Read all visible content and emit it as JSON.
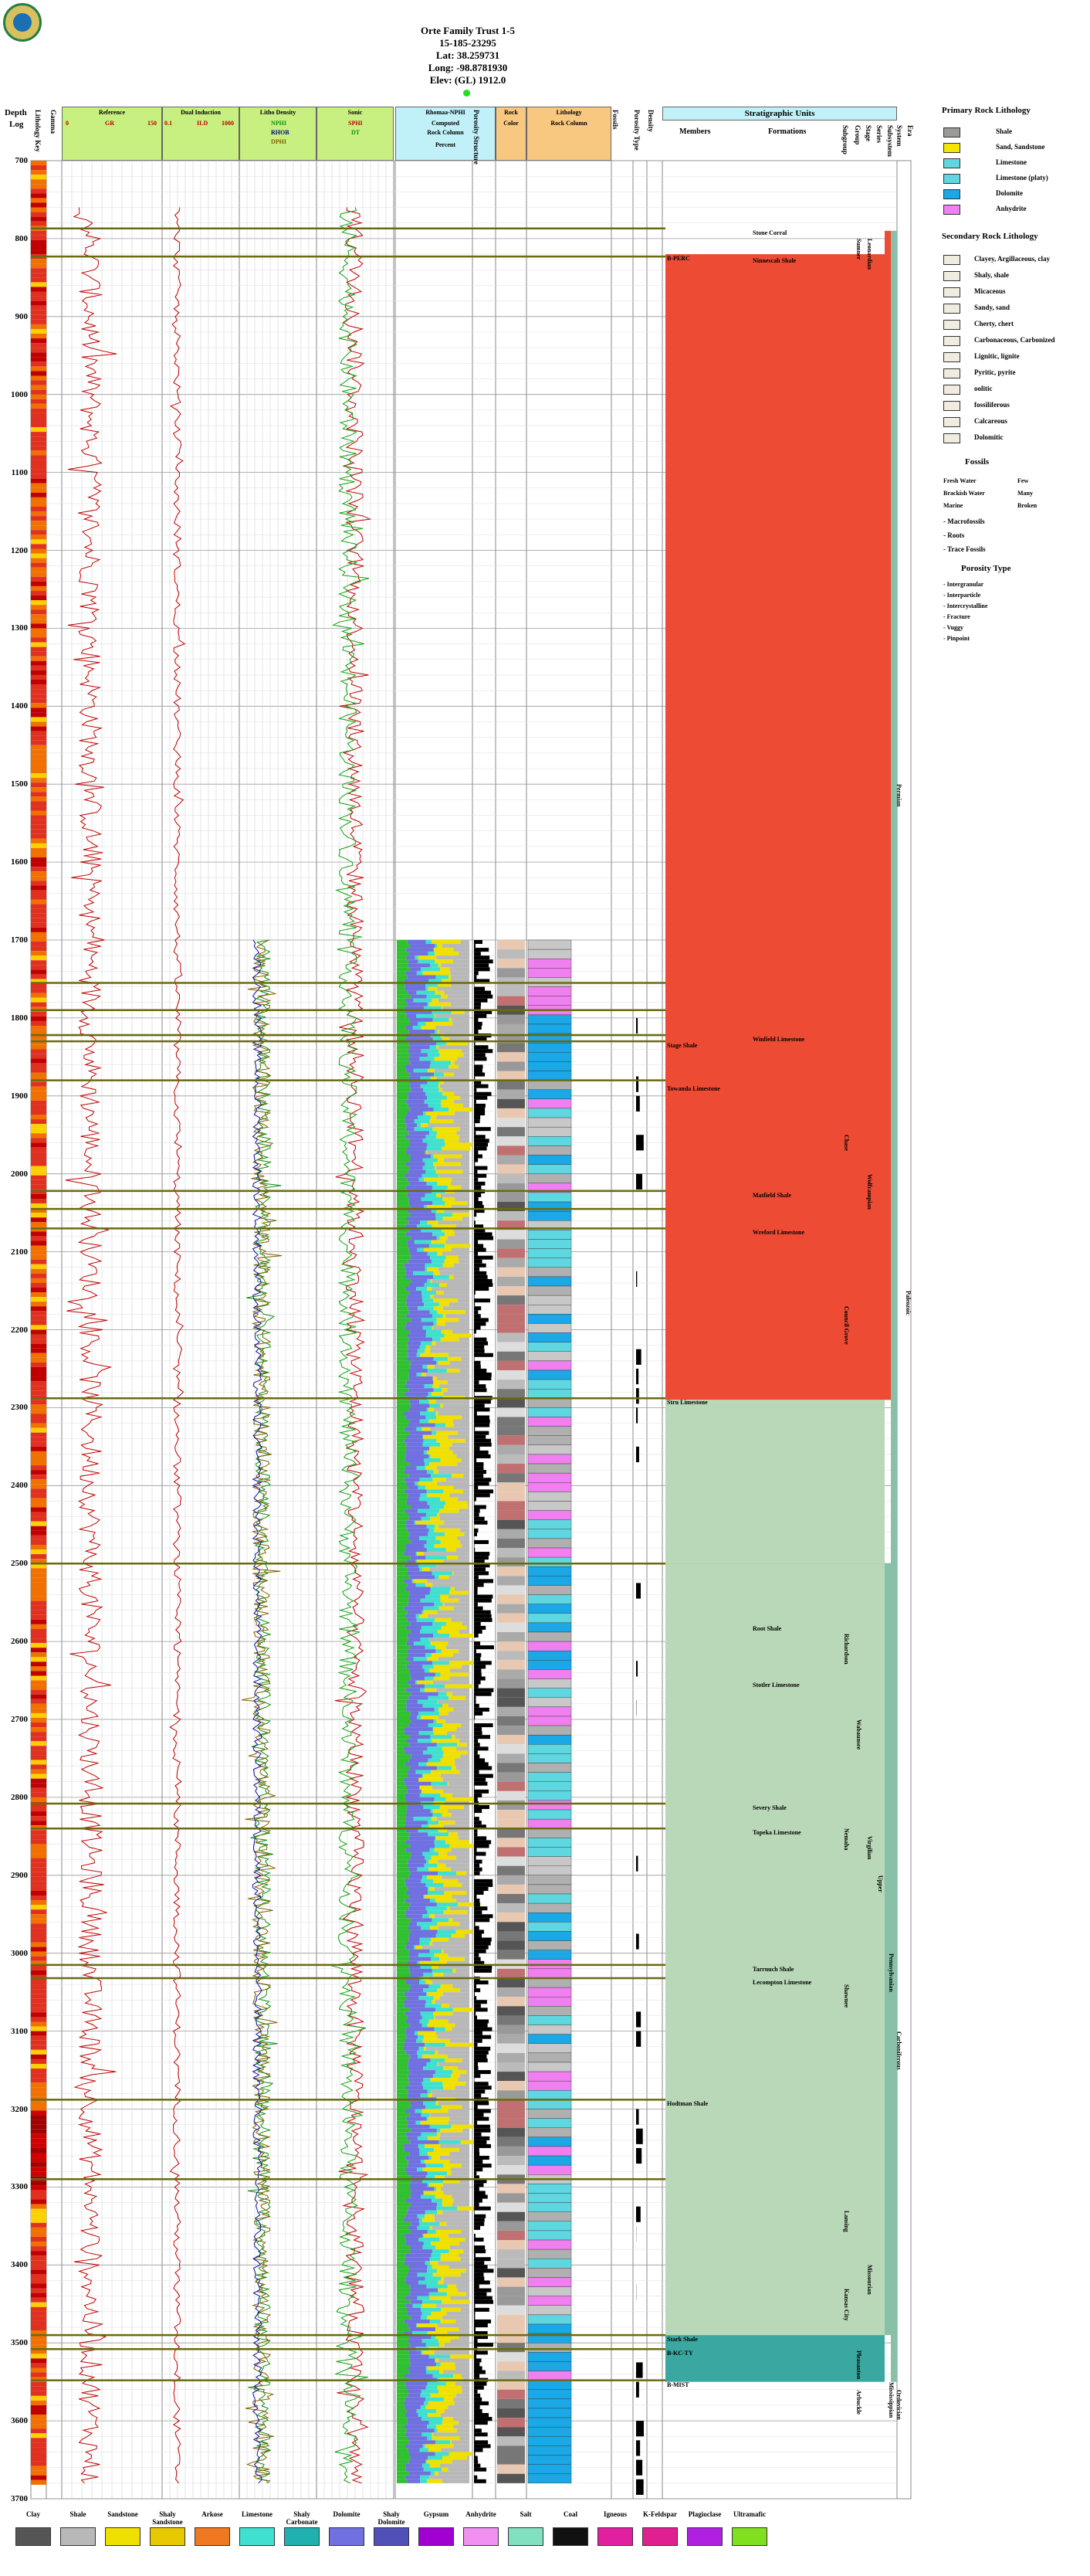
{
  "header": {
    "title": "Orte Family Trust 1-5",
    "api": "15-185-23295",
    "lat": "Lat: 38.259731",
    "long": "Long: -98.8781930",
    "elev": "Elev: (GL) 1912.0"
  },
  "columns": {
    "depth": "Depth",
    "depth_unit": "Log",
    "lith_key": "Lithology Key",
    "gamma": "Gamma",
    "reference": "Reference",
    "gr": "GR",
    "gr_range": [
      "0",
      "150"
    ],
    "dual_induction": "Dual Induction",
    "ild": "ILD",
    "ild_range": [
      "0.1",
      "1000"
    ],
    "litho_density": "Litho Density",
    "nphi": "NPHI",
    "rhob": "RHOB",
    "dphi": "DPHI",
    "sonic": "Sonic",
    "sphi": "SPHI",
    "dt": "DT",
    "rhomaa": "Rhomaa-NPHI",
    "computed": "Computed",
    "rock_column": "Rock Column",
    "percent": "Percent",
    "percent_ticks": [
      "0",
      "20",
      "50",
      "70",
      "90",
      "0",
      "50"
    ],
    "porosity": "Porosity Structure",
    "rock": "Rock",
    "color": "Color",
    "lithology": "Lithology",
    "lith_rock_column": "Rock Column",
    "fossils": "Fossils",
    "porosity_type": "Porosity Type",
    "density": "Density",
    "strat_units": "Stratigraphic Units",
    "members": "Members",
    "formations": "Formations",
    "subgroup": "Subgroup",
    "group": "Group",
    "stage": "Stage",
    "series": "Series",
    "subsystem": "Subsystem",
    "system": "System",
    "era": "Era"
  },
  "depth_labels": [
    "700",
    "800",
    "900",
    "1000",
    "1100",
    "1200",
    "1300",
    "1400",
    "1500",
    "1600",
    "1700",
    "1800",
    "1900",
    "2000",
    "2100",
    "2200",
    "2300",
    "2400",
    "2500",
    "2600",
    "2700",
    "2800",
    "2900",
    "3000",
    "3100",
    "3200",
    "3300",
    "3400",
    "3500",
    "3600",
    "3700"
  ],
  "members": [
    {
      "name": "B-PERC",
      "depth": 820
    },
    {
      "name": "Stage Shale",
      "depth": 1830
    },
    {
      "name": "Towanda Limestone",
      "depth": 1885
    },
    {
      "name": "Stru Limestone",
      "depth": 2288
    },
    {
      "name": "Hodtman Shale",
      "depth": 3188
    },
    {
      "name": "Stark Shale",
      "depth": 3490
    },
    {
      "name": "B-KC-TY",
      "depth": 3508
    },
    {
      "name": "B-MIST",
      "depth": 3548
    }
  ],
  "formations": [
    {
      "name": "Stone Corral",
      "depth": 787
    },
    {
      "name": "Ninnescah Shale",
      "depth": 823
    },
    {
      "name": "Winfield Limestone",
      "depth": 1822
    },
    {
      "name": "Matfield Shale",
      "depth": 2022
    },
    {
      "name": "Wreford Limestone",
      "depth": 2070
    },
    {
      "name": "Root Shale",
      "depth": 2578
    },
    {
      "name": "Stotler Limestone",
      "depth": 2650
    },
    {
      "name": "Severy Shale",
      "depth": 2808
    },
    {
      "name": "Topeka Limestone",
      "depth": 2840
    },
    {
      "name": "Tarrnuch Shale",
      "depth": 3015
    },
    {
      "name": "Lecompton Limestone",
      "depth": 3032
    }
  ],
  "strat_vertical": {
    "subgroup": [
      {
        "name": "Chase",
        "depth": 1950
      },
      {
        "name": "Council Grove",
        "depth": 2170
      },
      {
        "name": "Richardson",
        "depth": 2590
      },
      {
        "name": "Nemaha",
        "depth": 2840
      },
      {
        "name": "Shawnee",
        "depth": 3040
      },
      {
        "name": "Lansing",
        "depth": 3330
      },
      {
        "name": "Kansas City",
        "depth": 3430
      }
    ],
    "group": [
      {
        "name": "Sumner",
        "depth": 800
      },
      {
        "name": "Wabaunsee",
        "depth": 2700
      },
      {
        "name": "Pleasanton",
        "depth": 3510
      },
      {
        "name": "Arbuckle",
        "depth": 3560
      }
    ],
    "stage": [
      {
        "name": "Leonardian",
        "depth": 800
      },
      {
        "name": "Wolfcampian",
        "depth": 2000
      },
      {
        "name": "Virgilian",
        "depth": 2850
      },
      {
        "name": "Missourian",
        "depth": 3400
      }
    ],
    "series": [
      {
        "name": "Upper",
        "depth": 2900
      }
    ],
    "subsystem": [
      {
        "name": "Pennsylvanian",
        "depth": 3000
      },
      {
        "name": "Mississippian",
        "depth": 3550
      }
    ],
    "system": [
      {
        "name": "Permian",
        "depth": 1500
      },
      {
        "name": "Carboniferous",
        "depth": 3100
      },
      {
        "name": "Ordovician",
        "depth": 3560
      }
    ],
    "era": [
      {
        "name": "Paleozoic",
        "depth": 2150
      }
    ]
  },
  "legend": {
    "primary_title": "Primary Rock Lithology",
    "primary": [
      {
        "label": "Shale",
        "color": "#9a9a9a"
      },
      {
        "label": "Sand, Sandstone",
        "color": "#f5e500"
      },
      {
        "label": "Limestone",
        "color": "#5fd7e0"
      },
      {
        "label": "Limestone (platy)",
        "color": "#5fd7e0"
      },
      {
        "label": "Dolomite",
        "color": "#1aa8e6"
      },
      {
        "label": "Anhydrite",
        "color": "#f07ff0"
      }
    ],
    "secondary_title": "Secondary Rock Lithology",
    "secondary": [
      "Clayey, Argillaceous, clay",
      "Shaly, shale",
      "Micaceous",
      "Sandy, sand",
      "Cherty, chert",
      "Carbonaceous, Carbonized",
      "Lignitic, lignite",
      "Pyritic, pyrite",
      "oolitic",
      "fossiliferous",
      "Calcareous",
      "Dolomitic"
    ],
    "fossils_title": "Fossils",
    "fossils_left": [
      "Fresh Water",
      "Brackish Water",
      "Marine"
    ],
    "fossils_right": [
      "Few",
      "Many",
      "Broken"
    ],
    "fossils_list": [
      "- Macrofossils",
      "- Roots",
      "- Trace Fossils"
    ],
    "porosity_title": "Porosity Type",
    "porosity": [
      "- Intergranular",
      "- Interparticle",
      "- Intercrystalline",
      "- Fracture",
      "- Vuggy",
      "- Pinpoint"
    ]
  },
  "bottom_legend": [
    {
      "label": "Clay",
      "color": "#555555"
    },
    {
      "label": "Shale",
      "color": "#b8b8b8"
    },
    {
      "label": "Sandstone",
      "color": "#f0e000"
    },
    {
      "label": "Shaly Sandstone",
      "color": "#e8c800"
    },
    {
      "label": "Arkose",
      "color": "#f07820"
    },
    {
      "label": "Limestone",
      "color": "#40e0d0"
    },
    {
      "label": "Shaly Carbonate",
      "color": "#20b0b0"
    },
    {
      "label": "Dolomite",
      "color": "#7070e0"
    },
    {
      "label": "Shaly Dolomite",
      "color": "#5050b8"
    },
    {
      "label": "Gypsum",
      "color": "#a000d0"
    },
    {
      "label": "Anhydrite",
      "color": "#f090f0"
    },
    {
      "label": "Salt",
      "color": "#80e0c0"
    },
    {
      "label": "Coal",
      "color": "#111111"
    },
    {
      "label": "Igneous",
      "color": "#e020a0"
    },
    {
      "label": "K-Feldspar",
      "color": "#e02090"
    },
    {
      "label": "Plagioclase",
      "color": "#b020e0"
    },
    {
      "label": "Ultramafic",
      "color": "#80e020"
    }
  ],
  "colors": {
    "permian_fill": "#ee4b34",
    "permian_light": "#f08070",
    "carbon_fill": "#b8d8b8",
    "carbon_dark": "#88c0a8",
    "ordo_fill": "#3aa8a0",
    "header_cyan": "#c0f0f8",
    "header_green": "#c8f080",
    "header_orange": "#f8c880"
  }
}
